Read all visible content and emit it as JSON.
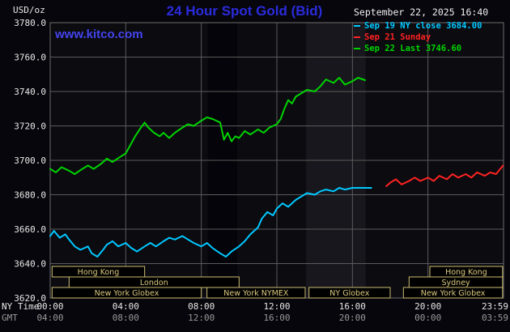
{
  "header": {
    "unit_label": "USD/oz",
    "title": "24 Hour Spot Gold (Bid)",
    "datetime": "September 22, 2025 16:40",
    "watermark": "www.kitco.com"
  },
  "legend": [
    {
      "label": "Sep 19 NY close 3684.00",
      "color": "#00c8ff"
    },
    {
      "label": "Sep 21 Sunday",
      "color": "#ff2222"
    },
    {
      "label": "Sep 22 Last 3746.60",
      "color": "#00d300"
    }
  ],
  "axes": {
    "y_tick_labels": [
      "3780.0",
      "3760.0",
      "3740.0",
      "3720.0",
      "3700.0",
      "3680.0",
      "3660.0",
      "3640.0",
      "3620.0"
    ],
    "x_rows": [
      {
        "name": "NY Time",
        "labels": [
          "00:00",
          "04:00",
          "08:00",
          "12:00",
          "16:00",
          "20:00",
          "23:59"
        ]
      },
      {
        "name": "GMT",
        "labels": [
          "04:00",
          "08:00",
          "12:00",
          "16:00",
          "20:00",
          "00:00",
          "03:59"
        ]
      }
    ]
  },
  "sessions": [
    {
      "row": 0,
      "label": "Hong Kong",
      "start": 0.1,
      "end": 5.0
    },
    {
      "row": 0,
      "label": "Hong Kong",
      "start": 20.1,
      "end": 23.95
    },
    {
      "row": 1,
      "label": "London",
      "start": 1.0,
      "end": 10.0
    },
    {
      "row": 1,
      "label": "Sydney",
      "start": 19.0,
      "end": 23.95
    },
    {
      "row": 2,
      "label": "New York Globex",
      "start": 0.1,
      "end": 8.0
    },
    {
      "row": 2,
      "label": "New York NYMEX",
      "start": 8.3,
      "end": 13.5
    },
    {
      "row": 2,
      "label": "NY Globex",
      "start": 13.7,
      "end": 18.0
    },
    {
      "row": 2,
      "label": "New York Globex",
      "start": 18.7,
      "end": 23.95
    }
  ],
  "chart_data": {
    "type": "line",
    "title": "24 Hour Spot Gold (Bid)",
    "ylabel": "USD/oz",
    "xlabel": "NY Time (hours)",
    "ylim": [
      3620,
      3780
    ],
    "xlim": [
      0,
      24
    ],
    "y_tick_step": 20,
    "x_tick_hours": [
      0,
      4,
      8,
      12,
      16,
      20,
      23.55
    ],
    "grid": true,
    "legend_position": "top-right",
    "bands": [
      {
        "start": 8.35,
        "end": 9.9,
        "color": "#04040a"
      },
      {
        "start": 13.55,
        "end": 16.7,
        "color": "#17171d"
      }
    ],
    "series": [
      {
        "name": "Sep 19 NY close",
        "close": 3684.0,
        "color": "#00c8ff",
        "points": [
          [
            0,
            3656
          ],
          [
            0.2,
            3659
          ],
          [
            0.5,
            3655
          ],
          [
            0.8,
            3657
          ],
          [
            1,
            3654
          ],
          [
            1.3,
            3650
          ],
          [
            1.6,
            3648
          ],
          [
            2,
            3650
          ],
          [
            2.2,
            3646
          ],
          [
            2.5,
            3644
          ],
          [
            2.8,
            3648
          ],
          [
            3,
            3651
          ],
          [
            3.3,
            3653
          ],
          [
            3.6,
            3650
          ],
          [
            4,
            3652
          ],
          [
            4.3,
            3649
          ],
          [
            4.6,
            3647
          ],
          [
            5,
            3650
          ],
          [
            5.3,
            3652
          ],
          [
            5.6,
            3650
          ],
          [
            6,
            3653
          ],
          [
            6.3,
            3655
          ],
          [
            6.6,
            3654
          ],
          [
            7,
            3656
          ],
          [
            7.3,
            3654
          ],
          [
            7.6,
            3652
          ],
          [
            8,
            3650
          ],
          [
            8.3,
            3652
          ],
          [
            8.6,
            3649
          ],
          [
            9,
            3646
          ],
          [
            9.3,
            3644
          ],
          [
            9.6,
            3647
          ],
          [
            10,
            3650
          ],
          [
            10.3,
            3653
          ],
          [
            10.6,
            3657
          ],
          [
            11,
            3661
          ],
          [
            11.2,
            3666
          ],
          [
            11.5,
            3670
          ],
          [
            11.8,
            3668
          ],
          [
            12,
            3672
          ],
          [
            12.3,
            3675
          ],
          [
            12.6,
            3673
          ],
          [
            13,
            3677
          ],
          [
            13.3,
            3679
          ],
          [
            13.6,
            3681
          ],
          [
            14,
            3680
          ],
          [
            14.3,
            3682
          ],
          [
            14.6,
            3683
          ],
          [
            15,
            3682
          ],
          [
            15.3,
            3684
          ],
          [
            15.6,
            3683
          ],
          [
            16,
            3684
          ],
          [
            16.5,
            3684
          ],
          [
            17,
            3684
          ]
        ]
      },
      {
        "name": "Sep 21 Sunday",
        "color": "#ff2222",
        "points": [
          [
            17.8,
            3685
          ],
          [
            18,
            3687
          ],
          [
            18.3,
            3689
          ],
          [
            18.6,
            3686
          ],
          [
            19,
            3688
          ],
          [
            19.3,
            3690
          ],
          [
            19.6,
            3688
          ],
          [
            20,
            3690
          ],
          [
            20.3,
            3688
          ],
          [
            20.6,
            3691
          ],
          [
            21,
            3689
          ],
          [
            21.3,
            3692
          ],
          [
            21.6,
            3690
          ],
          [
            22,
            3692
          ],
          [
            22.3,
            3690
          ],
          [
            22.6,
            3693
          ],
          [
            23,
            3691
          ],
          [
            23.3,
            3693
          ],
          [
            23.6,
            3692
          ],
          [
            23.98,
            3697
          ]
        ]
      },
      {
        "name": "Sep 22 Last",
        "last": 3746.6,
        "color": "#00d300",
        "points": [
          [
            0,
            3695
          ],
          [
            0.3,
            3693
          ],
          [
            0.6,
            3696
          ],
          [
            1,
            3694
          ],
          [
            1.3,
            3692
          ],
          [
            1.7,
            3695
          ],
          [
            2,
            3697
          ],
          [
            2.3,
            3695
          ],
          [
            2.7,
            3698
          ],
          [
            3,
            3701
          ],
          [
            3.3,
            3699
          ],
          [
            3.7,
            3702
          ],
          [
            4,
            3704
          ],
          [
            4.2,
            3708
          ],
          [
            4.5,
            3714
          ],
          [
            4.8,
            3719
          ],
          [
            5,
            3722
          ],
          [
            5.2,
            3719
          ],
          [
            5.5,
            3716
          ],
          [
            5.8,
            3714
          ],
          [
            6,
            3716
          ],
          [
            6.3,
            3713
          ],
          [
            6.6,
            3716
          ],
          [
            7,
            3719
          ],
          [
            7.3,
            3721
          ],
          [
            7.6,
            3720
          ],
          [
            8,
            3723
          ],
          [
            8.3,
            3725
          ],
          [
            8.6,
            3724
          ],
          [
            9,
            3722
          ],
          [
            9.2,
            3712
          ],
          [
            9.4,
            3716
          ],
          [
            9.6,
            3711
          ],
          [
            9.8,
            3714
          ],
          [
            10,
            3713
          ],
          [
            10.3,
            3717
          ],
          [
            10.6,
            3715
          ],
          [
            11,
            3718
          ],
          [
            11.3,
            3716
          ],
          [
            11.6,
            3719
          ],
          [
            12,
            3721
          ],
          [
            12.2,
            3724
          ],
          [
            12.4,
            3730
          ],
          [
            12.6,
            3735
          ],
          [
            12.8,
            3733
          ],
          [
            13,
            3737
          ],
          [
            13.3,
            3739
          ],
          [
            13.6,
            3741
          ],
          [
            14,
            3740
          ],
          [
            14.3,
            3743
          ],
          [
            14.6,
            3747
          ],
          [
            15,
            3745
          ],
          [
            15.3,
            3748
          ],
          [
            15.6,
            3744
          ],
          [
            16,
            3746
          ],
          [
            16.3,
            3748
          ],
          [
            16.67,
            3746.6
          ]
        ]
      }
    ]
  },
  "colors": {
    "background": "#06060c",
    "plot_background": "#0b0b10",
    "grid": "#5c5c5c",
    "border": "#6e6e6e",
    "tick_text": "#e8e8e8",
    "gmt_text": "#9a9a9a",
    "session": "#d9c87c",
    "session_border": "#cdbd72",
    "title": "#2b2bdc",
    "watermark": "#4444ee"
  }
}
